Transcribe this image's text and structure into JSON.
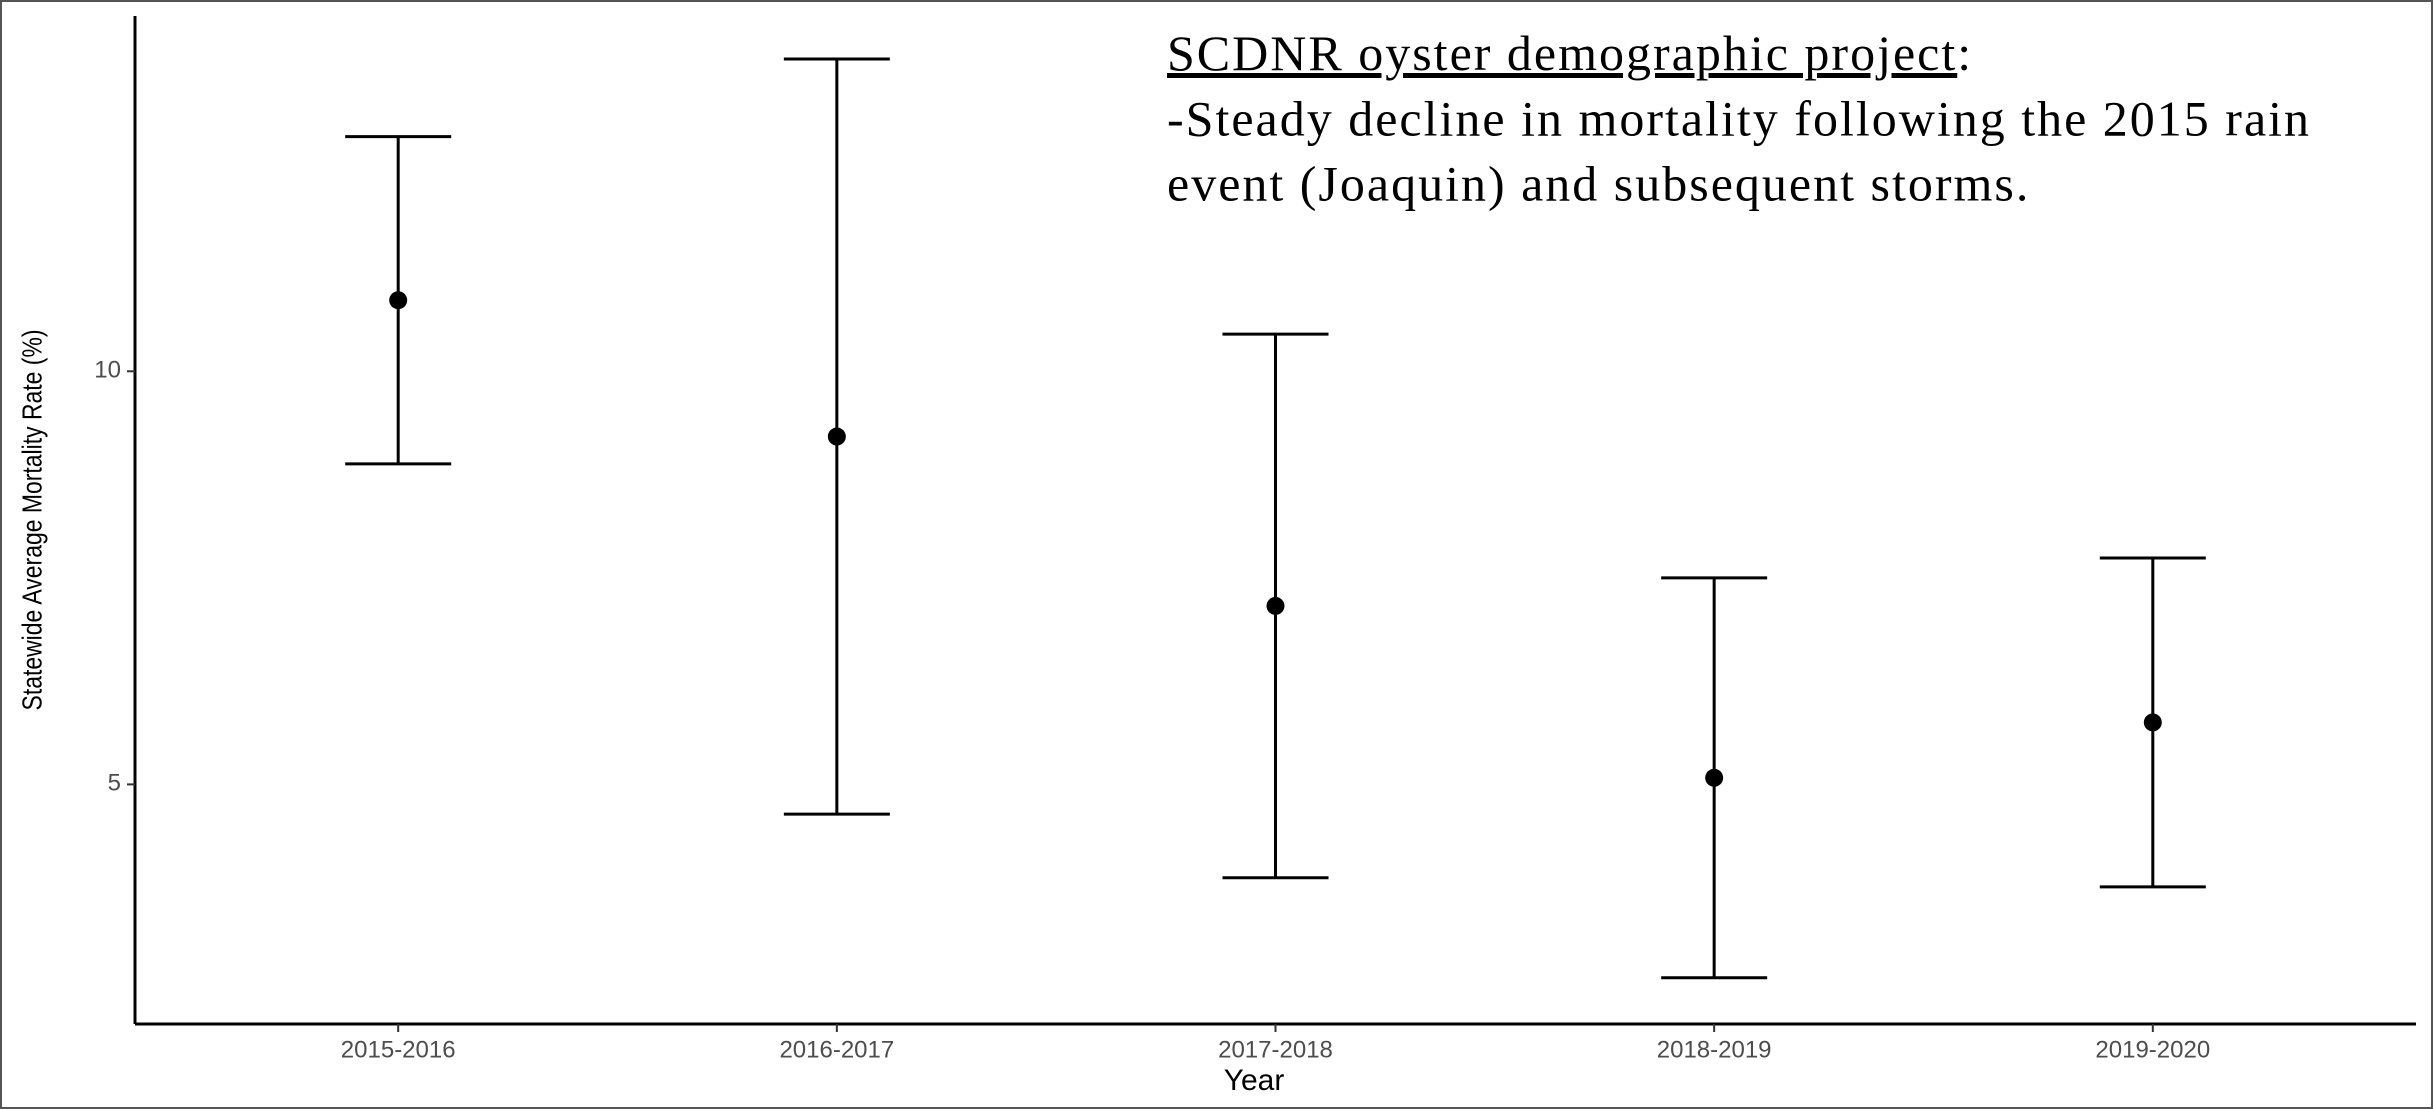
{
  "chart_data": {
    "type": "errorbar",
    "categories": [
      "2015-2016",
      "2016-2017",
      "2017-2018",
      "2018-2019",
      "2019-2020"
    ],
    "values": [
      10.86,
      9.21,
      7.16,
      5.08,
      5.75
    ],
    "errors": [
      1.98,
      4.57,
      3.29,
      2.42,
      1.99
    ],
    "color": "#000000",
    "ylim": [
      2.1,
      14.3
    ],
    "yticks": [
      5,
      10
    ],
    "x_label": "Year",
    "y_label": "Statewide Average Mortality Rate (%)",
    "annotation": {
      "heading": "SCDNR oyster demographic project",
      "heading_suffix": ":",
      "lines": [
        "-Steady decline in mortality following the 2015 rain",
        "event (Joaquin) and subsequent storms."
      ]
    }
  }
}
